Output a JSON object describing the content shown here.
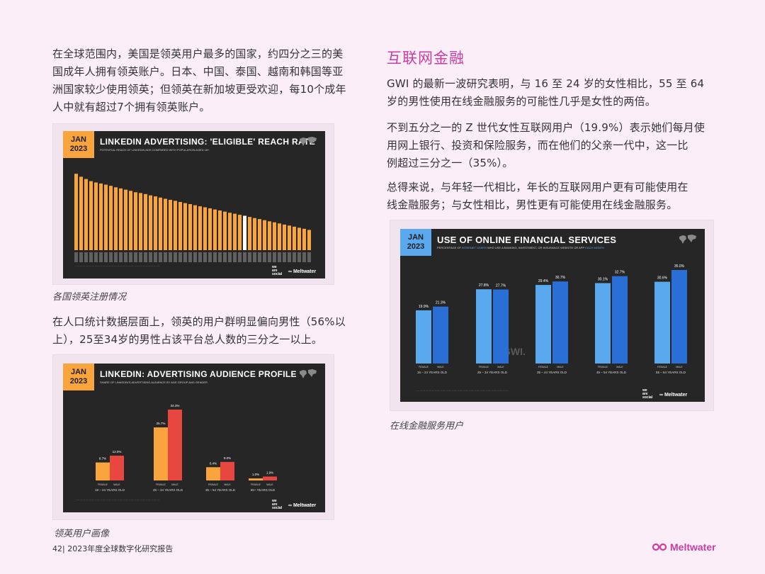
{
  "left": {
    "para1": [
      "在全球范围内，美国是领英用户最多的国家，约四分之三的美",
      "国成年人拥有领英账户。日本、中国、泰国、越南和韩国等亚",
      "洲国家较少使用领英；但领英在新加坡更受欢迎，每10个成年",
      "人中就有超过7个拥有领英账户。"
    ],
    "caption1": "各国领英注册情况",
    "para2": [
      "在人口统计数据层面上，领英的用户群明显偏向男性（56%以",
      "上），25至34岁的男性占该平台总人数的三分之一以上。"
    ],
    "caption2": "领英用户画像"
  },
  "right": {
    "section_title": "互联网金融",
    "para1": [
      "GWI 的最新一波研究表明，与 16 至 24 岁的女性相比，55 至 64",
      "岁的男性使用在线金融服务的可能性几乎是女性的两倍。"
    ],
    "para2": [
      "不到五分之一的 Z 世代女性互联网用户（19.9%）表示她们每月使",
      "用网上银行、投资和保险服务，而在他们的父亲一代中，这一比",
      "例超过三分之一（35%）。"
    ],
    "para3": [
      "总得来说，与年轻一代相比，年长的互联网用户更有可能使用在",
      "线金融服务；与女性相比，男性更有可能使用在线金融服务。"
    ],
    "caption3": "在线金融服务用户"
  },
  "footer": {
    "page": "42| 2023年度全球数字化研究报告",
    "logo": "Meltwater"
  },
  "badge": {
    "line1": "JAN",
    "line2": "2023"
  },
  "brand": {
    "weare": [
      "we",
      "are",
      "social"
    ],
    "meltwater": "Meltwater"
  },
  "colors": {
    "orange": "#f9a43c",
    "red": "#e8473f",
    "lightblue": "#5aa9ee",
    "blue": "#2a6fd6",
    "accent": "#c93ea3"
  },
  "chart_data": [
    {
      "type": "bar",
      "title": "LINKEDIN ADVERTISING: 'ELIGIBLE' REACH RATE",
      "subtitle": "POTENTIAL REACH OF LINKEDIN ADS COMPARED WITH POPULATION AGED 18+",
      "values": [
        81.8,
        78.6,
        76.2,
        73.9,
        72.5,
        71.4,
        70.2,
        68.9,
        67.3,
        66.1,
        64.8,
        63.5,
        62.0,
        61.2,
        60.1,
        58.7,
        57.6,
        56.3,
        55.0,
        53.9,
        52.8,
        51.6,
        50.4,
        49.3,
        48.1,
        47.0,
        45.9,
        44.8,
        43.6,
        42.5,
        41.3,
        40.1,
        39.0,
        37.9,
        36.8,
        35.6,
        34.4,
        33.3,
        32.1,
        30.9,
        29.8,
        28.6,
        27.4,
        26.3,
        25.1,
        24.0,
        22.9,
        21.7
      ],
      "highlight_index": 34
    },
    {
      "type": "bar",
      "title": "LINKEDIN: ADVERTISING AUDIENCE PROFILE",
      "subtitle": "SHARE OF LINKEDIN'S ADVERTISING AUDIENCE BY AGE GROUP AND GENDER",
      "categories": [
        "18 – 24 YEARS OLD",
        "25 – 34 YEARS OLD",
        "35 – 54 YEARS OLD",
        "55+ YEARS OLD"
      ],
      "series": [
        {
          "name": "FEMALE",
          "values": [
            8.7,
            25.7,
            6.4,
            1.0
          ]
        },
        {
          "name": "MALE",
          "values": [
            12.0,
            34.3,
            9.0,
            1.9
          ]
        }
      ],
      "labels": [
        "8.7%",
        "12.0%",
        "25.7%",
        "34.3%",
        "6.4%",
        "9.0%",
        "1.0%",
        "1.9%"
      ]
    },
    {
      "type": "bar",
      "title": "USE OF ONLINE FINANCIAL SERVICES",
      "subtitle_parts": [
        "PERCENTAGE OF ",
        "INTERNET USERS",
        " WHO USE A BANKING, INVESTMENT, OR INSURANCE WEBSITE OR APP ",
        "EACH MONTH"
      ],
      "categories": [
        "16 – 24 YEARS OLD",
        "25 – 34 YEARS OLD",
        "35 – 44 YEARS OLD",
        "45 – 54 YEARS OLD",
        "55 – 64 YEARS OLD"
      ],
      "series": [
        {
          "name": "FEMALE",
          "values": [
            19.9,
            27.8,
            29.4,
            30.1,
            30.6
          ]
        },
        {
          "name": "MALE",
          "values": [
            21.3,
            27.7,
            30.7,
            32.7,
            35.0
          ]
        }
      ],
      "labels_f": [
        "19.9%",
        "27.8%",
        "29.4%",
        "30.1%",
        "30.6%"
      ],
      "labels_m": [
        "21.3%",
        "27.7%",
        "30.7%",
        "32.7%",
        "35.0%"
      ],
      "watermark": "GWI."
    }
  ]
}
